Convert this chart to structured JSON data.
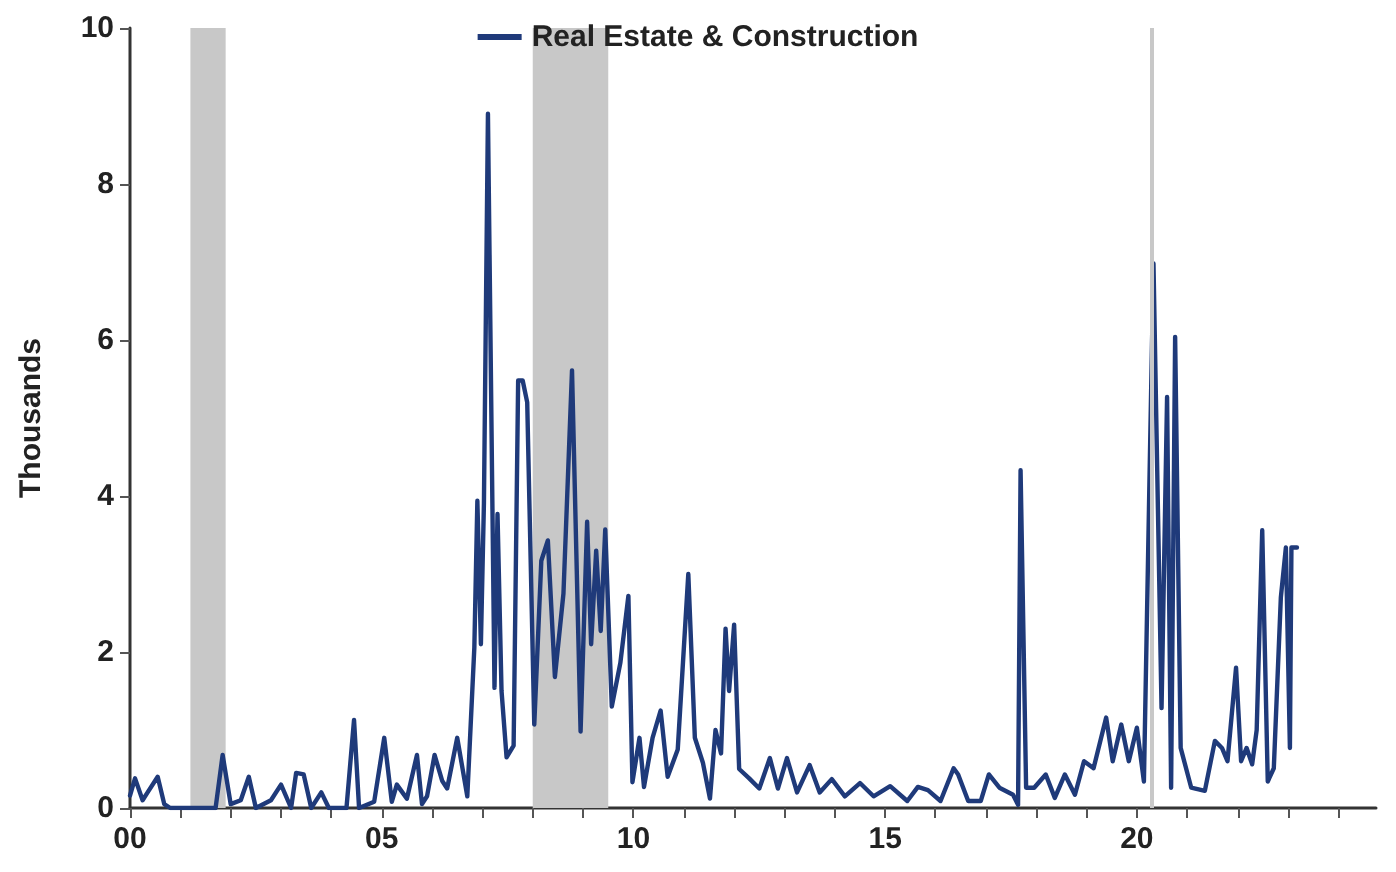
{
  "chart_data": {
    "type": "line",
    "ylabel": "Thousands",
    "legend": "top",
    "grid": false,
    "marker": "none",
    "line_style": "solid",
    "xlim": [
      2000,
      2024.75
    ],
    "ylim": [
      0,
      10
    ],
    "yticks": [
      0,
      2,
      4,
      6,
      8,
      10
    ],
    "xticks": [
      {
        "value": 2000,
        "label": "00"
      },
      {
        "value": 2001,
        "label": null
      },
      {
        "value": 2002,
        "label": null
      },
      {
        "value": 2003,
        "label": null
      },
      {
        "value": 2004,
        "label": null
      },
      {
        "value": 2005,
        "label": "05"
      },
      {
        "value": 2006,
        "label": null
      },
      {
        "value": 2007,
        "label": null
      },
      {
        "value": 2008,
        "label": null
      },
      {
        "value": 2009,
        "label": null
      },
      {
        "value": 2010,
        "label": "10"
      },
      {
        "value": 2011,
        "label": null
      },
      {
        "value": 2012,
        "label": null
      },
      {
        "value": 2013,
        "label": null
      },
      {
        "value": 2014,
        "label": null
      },
      {
        "value": 2015,
        "label": "15"
      },
      {
        "value": 2016,
        "label": null
      },
      {
        "value": 2017,
        "label": null
      },
      {
        "value": 2018,
        "label": null
      },
      {
        "value": 2019,
        "label": null
      },
      {
        "value": 2020,
        "label": "20"
      },
      {
        "value": 2021,
        "label": null
      },
      {
        "value": 2022,
        "label": null
      },
      {
        "value": 2023,
        "label": null
      },
      {
        "value": 2024,
        "label": null
      }
    ],
    "bands": [
      {
        "axis": "x",
        "from": 2001.2,
        "to": 2001.9,
        "color": "#c8c8c8"
      },
      {
        "axis": "x",
        "from": 2008.0,
        "to": 2009.5,
        "color": "#c8c8c8"
      }
    ],
    "ref_lines": [
      {
        "axis": "x",
        "value": 2020.3,
        "color": "#c8c8c8"
      }
    ],
    "series": [
      {
        "name": "Real Estate & Construction",
        "color": "#1f3a7a",
        "x": [
          2000.0,
          2000.1,
          2000.25,
          2000.35,
          2000.55,
          2000.68,
          2000.8,
          2001.7,
          2001.84,
          2002.0,
          2002.2,
          2002.36,
          2002.5,
          2002.8,
          2003.0,
          2003.2,
          2003.3,
          2003.45,
          2003.6,
          2003.8,
          2003.95,
          2004.3,
          2004.45,
          2004.55,
          2004.85,
          2005.05,
          2005.2,
          2005.3,
          2005.5,
          2005.7,
          2005.8,
          2005.9,
          2006.05,
          2006.2,
          2006.3,
          2006.5,
          2006.7,
          2006.84,
          2006.9,
          2006.97,
          2007.03,
          2007.11,
          2007.24,
          2007.3,
          2007.38,
          2007.48,
          2007.62,
          2007.71,
          2007.8,
          2007.89,
          2008.03,
          2008.17,
          2008.3,
          2008.44,
          2008.61,
          2008.78,
          2008.95,
          2009.08,
          2009.16,
          2009.26,
          2009.35,
          2009.44,
          2009.57,
          2009.74,
          2009.9,
          2009.98,
          2010.12,
          2010.21,
          2010.38,
          2010.54,
          2010.68,
          2010.88,
          2011.09,
          2011.22,
          2011.38,
          2011.52,
          2011.63,
          2011.74,
          2011.83,
          2011.9,
          2012.0,
          2012.1,
          2012.3,
          2012.5,
          2012.71,
          2012.87,
          2013.05,
          2013.25,
          2013.5,
          2013.7,
          2013.94,
          2014.2,
          2014.5,
          2014.77,
          2015.1,
          2015.44,
          2015.65,
          2015.85,
          2016.1,
          2016.36,
          2016.45,
          2016.65,
          2016.9,
          2017.06,
          2017.27,
          2017.54,
          2017.64,
          2017.69,
          2017.8,
          2017.96,
          2018.19,
          2018.37,
          2018.57,
          2018.77,
          2018.95,
          2019.14,
          2019.39,
          2019.52,
          2019.69,
          2019.84,
          2020.0,
          2020.14,
          2020.33,
          2020.49,
          2020.6,
          2020.68,
          2020.76,
          2020.87,
          2021.08,
          2021.35,
          2021.55,
          2021.69,
          2021.8,
          2021.97,
          2022.07,
          2022.18,
          2022.29,
          2022.38,
          2022.49,
          2022.6,
          2022.72,
          2022.86,
          2022.96,
          2023.04,
          2023.07,
          2023.18
        ],
        "values": [
          0.16,
          0.38,
          0.1,
          0.2,
          0.4,
          0.05,
          0,
          0,
          0.68,
          0.05,
          0.1,
          0.4,
          0,
          0.1,
          0.3,
          0,
          0.45,
          0.43,
          0,
          0.2,
          0,
          0,
          1.13,
          0,
          0.08,
          0.9,
          0.08,
          0.3,
          0.12,
          0.68,
          0.05,
          0.15,
          0.68,
          0.35,
          0.25,
          0.9,
          0.15,
          2.06,
          3.94,
          2.1,
          3.9,
          8.9,
          1.54,
          3.77,
          1.5,
          0.65,
          0.8,
          5.48,
          5.48,
          5.2,
          1.07,
          3.17,
          3.43,
          1.68,
          2.75,
          5.61,
          0.98,
          3.67,
          2.1,
          3.3,
          2.27,
          3.57,
          1.3,
          1.86,
          2.72,
          0.33,
          0.9,
          0.27,
          0.9,
          1.25,
          0.4,
          0.75,
          3.0,
          0.9,
          0.58,
          0.12,
          1.0,
          0.7,
          2.3,
          1.5,
          2.35,
          0.5,
          0.38,
          0.25,
          0.64,
          0.25,
          0.64,
          0.2,
          0.55,
          0.2,
          0.37,
          0.15,
          0.32,
          0.15,
          0.28,
          0.09,
          0.27,
          0.23,
          0.09,
          0.51,
          0.43,
          0.09,
          0.09,
          0.43,
          0.26,
          0.17,
          0.04,
          4.33,
          0.26,
          0.26,
          0.43,
          0.13,
          0.43,
          0.17,
          0.6,
          0.51,
          1.16,
          0.6,
          1.07,
          0.6,
          1.03,
          0.34,
          6.98,
          1.28,
          5.27,
          0.26,
          6.04,
          0.77,
          0.26,
          0.22,
          0.86,
          0.77,
          0.6,
          1.8,
          0.6,
          0.77,
          0.56,
          1.0,
          3.56,
          0.34,
          0.51,
          2.7,
          3.34,
          0.77,
          3.34,
          3.34
        ]
      }
    ]
  }
}
